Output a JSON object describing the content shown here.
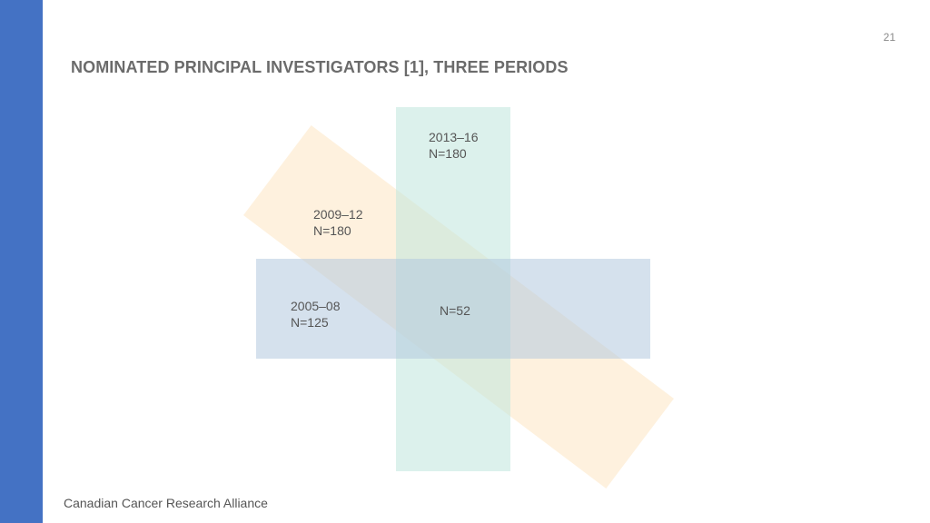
{
  "page_number": "21",
  "title": "NOMINATED PRINCIPAL INVESTIGATORS [1], THREE PERIODS",
  "footer": "Canadian Cancer Research Alliance",
  "colors": {
    "sidebar": "#4472c4",
    "period_2005_08": "#b3c9df",
    "period_2009_12": "#fde6c2",
    "period_2013_16": "#bfe6dc"
  },
  "periods": [
    {
      "period": "2005–08",
      "n": "N=125"
    },
    {
      "period": "2009–12",
      "n": "N=180"
    },
    {
      "period": "2013–16",
      "n": "N=180"
    }
  ],
  "overlap": {
    "n": "N=52"
  }
}
